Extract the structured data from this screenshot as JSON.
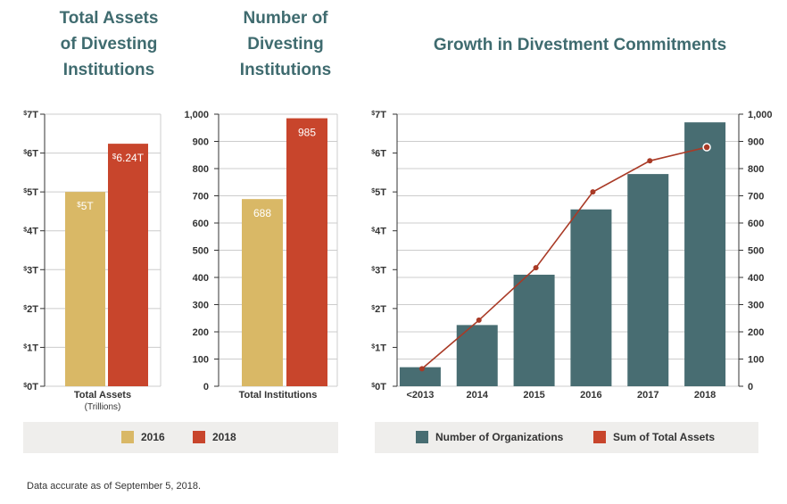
{
  "titles": {
    "assets": [
      "Total Assets",
      "of Divesting",
      "Institutions"
    ],
    "count": [
      "Number of",
      "Divesting",
      "Institutions"
    ],
    "growth": "Growth in Divestment Commitments"
  },
  "legends": {
    "left": [
      {
        "label": "2016",
        "color": "#d9b866"
      },
      {
        "label": "2018",
        "color": "#c8452c"
      }
    ],
    "right": [
      {
        "label": "Number of Organizations",
        "color": "#486d72"
      },
      {
        "label": "Sum of Total Assets",
        "color": "#c8452c"
      }
    ]
  },
  "footnote": "Data accurate as of September 5, 2018.",
  "colors": {
    "gold": "#d9b866",
    "red": "#c8452c",
    "teal": "#486d72",
    "line": "#a93a26",
    "grid": "#cccccc",
    "axis": "#333333",
    "legend_bg": "#efeeec",
    "title": "#3f6b6f"
  },
  "chart_data": [
    {
      "id": "assets",
      "type": "bar",
      "title": "Total Assets of Divesting Institutions",
      "xlabel": "Total Assets",
      "xlabel_sub": "(Trillions)",
      "ylim": [
        0,
        7
      ],
      "yticks": [
        "$0T",
        "$1T",
        "$2T",
        "$3T",
        "$4T",
        "$5T",
        "$6T",
        "$7T"
      ],
      "series": [
        {
          "name": "2016",
          "values": [
            5
          ],
          "labels": [
            "$5T"
          ]
        },
        {
          "name": "2018",
          "values": [
            6.24
          ],
          "labels": [
            "$6.24T"
          ]
        }
      ]
    },
    {
      "id": "count",
      "type": "bar",
      "title": "Number of Divesting Institutions",
      "xlabel": "Total Institutions",
      "ylim": [
        0,
        1000
      ],
      "yticks": [
        "0",
        "100",
        "200",
        "300",
        "400",
        "500",
        "600",
        "700",
        "800",
        "900",
        "1,000"
      ],
      "series": [
        {
          "name": "2016",
          "values": [
            688
          ],
          "labels": [
            "688"
          ]
        },
        {
          "name": "2018",
          "values": [
            985
          ],
          "labels": [
            "985"
          ]
        }
      ]
    },
    {
      "id": "growth",
      "type": "bar",
      "title": "Growth in Divestment Commitments",
      "categories": [
        "<2013",
        "2014",
        "2015",
        "2016",
        "2017",
        "2018"
      ],
      "ylim_left": [
        0,
        7
      ],
      "yticks_left": [
        "$0T",
        "$1T",
        "$2T",
        "$3T",
        "$4T",
        "$5T",
        "$6T",
        "$7T"
      ],
      "ylim_right": [
        0,
        1000
      ],
      "yticks_right": [
        "0",
        "100",
        "200",
        "300",
        "400",
        "500",
        "600",
        "700",
        "800",
        "900",
        "1,000"
      ],
      "series": [
        {
          "name": "Number of Organizations",
          "type": "bar",
          "axis": "right",
          "values": [
            70,
            225,
            410,
            650,
            780,
            970
          ]
        },
        {
          "name": "Sum of Total Assets",
          "type": "line",
          "axis": "left",
          "values": [
            0.45,
            1.7,
            3.05,
            5.0,
            5.8,
            6.15
          ]
        }
      ]
    }
  ]
}
